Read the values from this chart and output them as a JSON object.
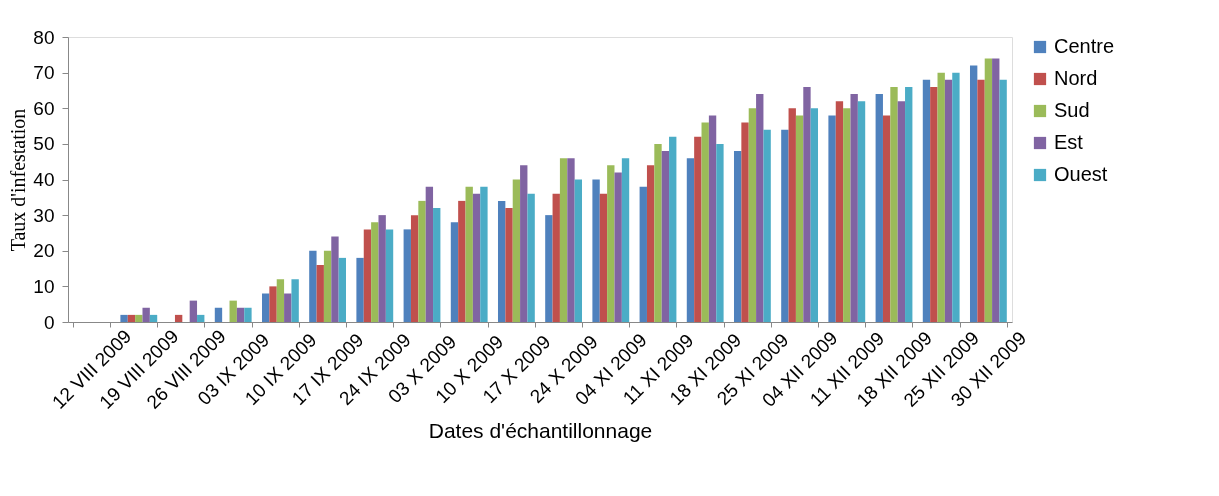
{
  "chart_data": {
    "type": "bar",
    "xlabel": "Dates d'échantillonnage",
    "ylabel": "Taux d'infestation",
    "categories": [
      "12 VIII 2009",
      "19  VIII 2009",
      "26 VIII 2009",
      "03 IX 2009",
      "10 IX 2009",
      "17 IX 2009",
      "24 IX 2009",
      "03 X 2009",
      "10 X 2009",
      "17 X 2009",
      "24 X 2009",
      "04 XI 2009",
      "11 XI 2009",
      "18 XI 2009",
      "25 XI 2009",
      "04 XII 2009",
      "11 XII 2009",
      "18 XII 2009",
      "25 XII 2009",
      "30 XII 2009"
    ],
    "series": [
      {
        "name": "Centre",
        "color": "#4f81bd",
        "values": [
          0,
          2,
          0,
          4,
          8,
          20,
          18,
          26,
          28,
          34,
          30,
          40,
          38,
          46,
          48,
          54,
          58,
          64,
          68,
          72
        ]
      },
      {
        "name": "Nord",
        "color": "#c0504d",
        "values": [
          0,
          2,
          2,
          0,
          10,
          16,
          26,
          30,
          34,
          32,
          36,
          36,
          44,
          52,
          56,
          60,
          62,
          58,
          66,
          68
        ]
      },
      {
        "name": "Sud",
        "color": "#9bbb59",
        "values": [
          0,
          2,
          0,
          6,
          12,
          20,
          28,
          34,
          38,
          40,
          46,
          44,
          50,
          56,
          60,
          58,
          60,
          66,
          70,
          74
        ]
      },
      {
        "name": "Est",
        "color": "#8064a2",
        "values": [
          0,
          4,
          6,
          4,
          8,
          24,
          30,
          38,
          36,
          44,
          46,
          42,
          48,
          58,
          64,
          66,
          64,
          62,
          68,
          74
        ]
      },
      {
        "name": "Ouest",
        "color": "#4bacc6",
        "values": [
          0,
          2,
          2,
          4,
          12,
          18,
          26,
          32,
          38,
          36,
          40,
          46,
          52,
          50,
          54,
          60,
          62,
          66,
          70,
          68
        ]
      }
    ],
    "ylim": [
      0,
      80
    ],
    "yticks": [
      0,
      10,
      20,
      30,
      40,
      50,
      60,
      70,
      80
    ],
    "grid": false,
    "legend": "right"
  }
}
